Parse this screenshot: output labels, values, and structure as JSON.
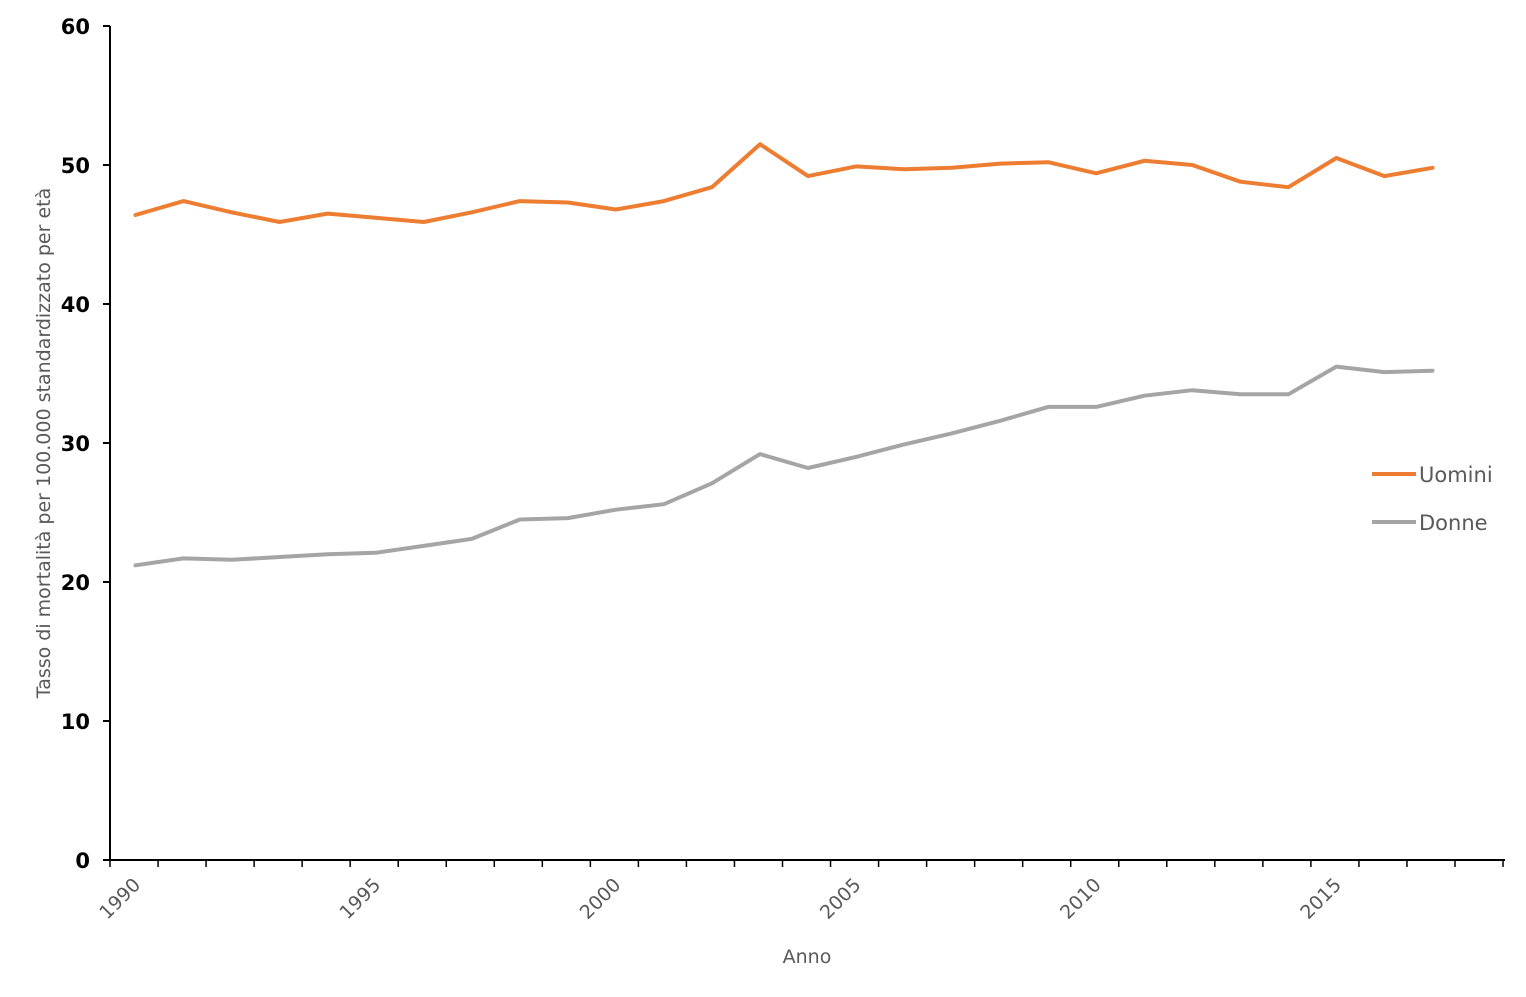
{
  "chart_data": {
    "type": "line",
    "title": "",
    "xlabel": "Anno",
    "ylabel": "Tasso di mortalità per 100.000 standardizzato per età",
    "ylim": [
      0,
      60
    ],
    "yticks": [
      0,
      10,
      20,
      30,
      40,
      50,
      60
    ],
    "xlim": [
      1990,
      2018
    ],
    "xticks": [
      1990,
      1995,
      2000,
      2005,
      2010,
      2015
    ],
    "grid": false,
    "legend_position": "right",
    "x": [
      1990,
      1991,
      1992,
      1993,
      1994,
      1995,
      1996,
      1997,
      1998,
      1999,
      2000,
      2001,
      2002,
      2003,
      2004,
      2005,
      2006,
      2007,
      2008,
      2009,
      2010,
      2011,
      2012,
      2013,
      2014,
      2015,
      2016,
      2017,
      2018
    ],
    "series": [
      {
        "name": "Uomini",
        "color": "#ED7D31",
        "values": [
          46.4,
          47.4,
          46.6,
          45.9,
          46.5,
          46.2,
          45.9,
          46.6,
          47.4,
          47.3,
          46.8,
          47.4,
          48.4,
          51.5,
          49.2,
          49.9,
          49.7,
          49.8,
          50.1,
          50.2,
          49.4,
          50.3,
          50.0,
          48.8,
          48.4,
          50.5,
          49.2,
          49.8,
          null
        ]
      },
      {
        "name": "Donne",
        "color": "#A5A5A5",
        "values": [
          21.2,
          21.7,
          21.6,
          21.8,
          22.0,
          22.1,
          22.6,
          23.1,
          24.5,
          24.6,
          25.2,
          25.6,
          27.1,
          29.2,
          28.2,
          29.0,
          29.9,
          30.7,
          31.6,
          32.6,
          32.6,
          33.4,
          33.8,
          33.5,
          33.5,
          35.5,
          35.1,
          35.2,
          null
        ]
      }
    ]
  }
}
